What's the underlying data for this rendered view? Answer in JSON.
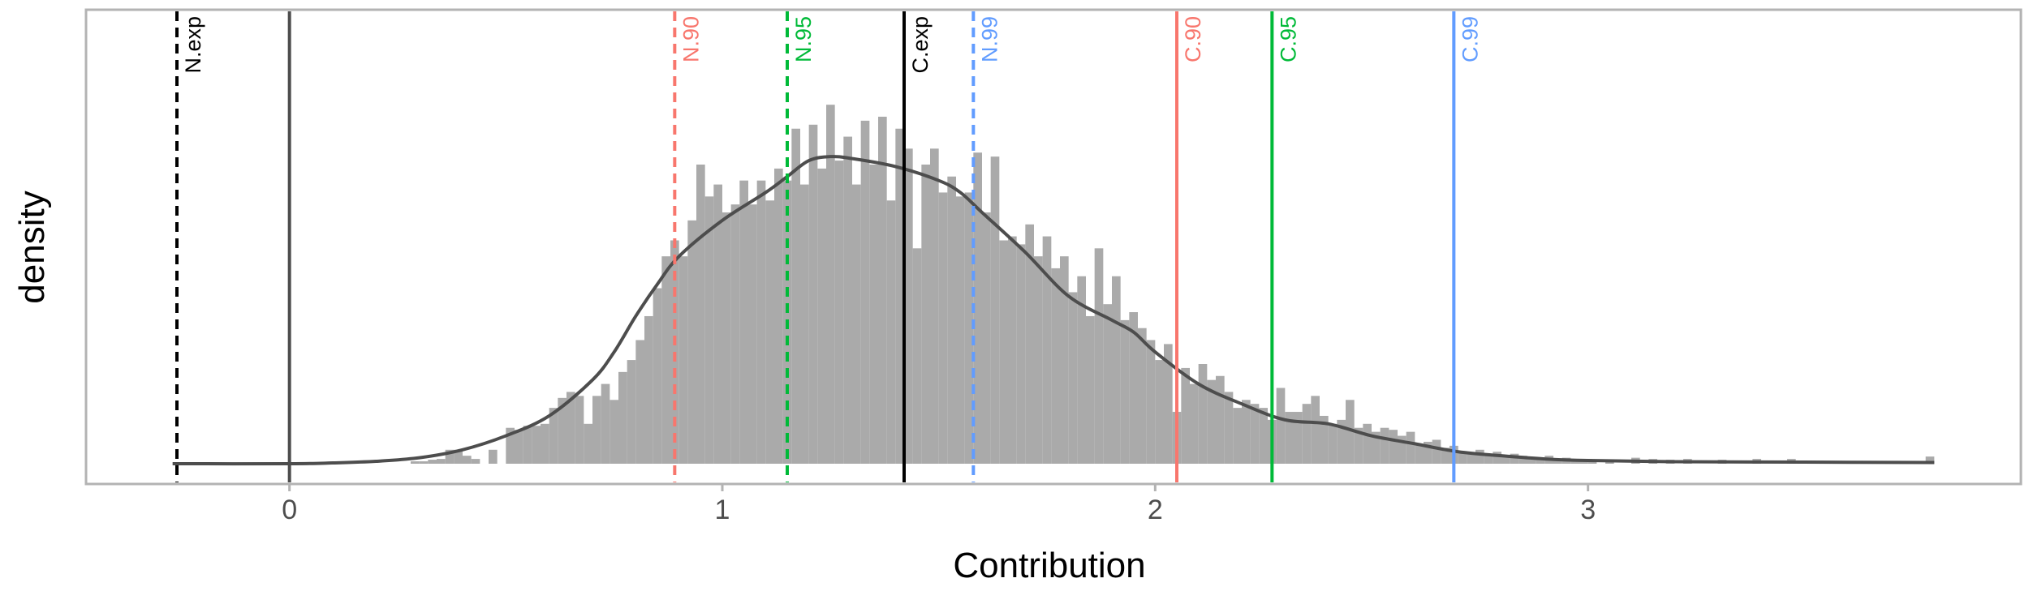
{
  "chart_data": {
    "type": "histogram",
    "xlabel": "Contribution",
    "ylabel": "density",
    "xlim": [
      -0.47,
      4.0
    ],
    "ylim": [
      0,
      1.0
    ],
    "x_ticks": [
      0,
      1,
      2,
      3
    ],
    "grid": false,
    "bar_color": "#aaaaaa",
    "density_color": "#4d4d4d",
    "histogram": {
      "bin_width": 0.02,
      "bins": [
        {
          "x": 0.29,
          "y": 0.006
        },
        {
          "x": 0.31,
          "y": 0.006
        },
        {
          "x": 0.33,
          "y": 0.01
        },
        {
          "x": 0.35,
          "y": 0.012
        },
        {
          "x": 0.37,
          "y": 0.035
        },
        {
          "x": 0.39,
          "y": 0.035
        },
        {
          "x": 0.41,
          "y": 0.02
        },
        {
          "x": 0.43,
          "y": 0.012
        },
        {
          "x": 0.47,
          "y": 0.035
        },
        {
          "x": 0.51,
          "y": 0.09
        },
        {
          "x": 0.53,
          "y": 0.085
        },
        {
          "x": 0.55,
          "y": 0.095
        },
        {
          "x": 0.57,
          "y": 0.095
        },
        {
          "x": 0.59,
          "y": 0.1
        },
        {
          "x": 0.61,
          "y": 0.14
        },
        {
          "x": 0.63,
          "y": 0.165
        },
        {
          "x": 0.65,
          "y": 0.18
        },
        {
          "x": 0.67,
          "y": 0.17
        },
        {
          "x": 0.69,
          "y": 0.1
        },
        {
          "x": 0.71,
          "y": 0.17
        },
        {
          "x": 0.73,
          "y": 0.2
        },
        {
          "x": 0.75,
          "y": 0.16
        },
        {
          "x": 0.77,
          "y": 0.23
        },
        {
          "x": 0.79,
          "y": 0.26
        },
        {
          "x": 0.81,
          "y": 0.31
        },
        {
          "x": 0.83,
          "y": 0.37
        },
        {
          "x": 0.85,
          "y": 0.44
        },
        {
          "x": 0.87,
          "y": 0.52
        },
        {
          "x": 0.89,
          "y": 0.56
        },
        {
          "x": 0.91,
          "y": 0.52
        },
        {
          "x": 0.93,
          "y": 0.61
        },
        {
          "x": 0.95,
          "y": 0.75
        },
        {
          "x": 0.97,
          "y": 0.67
        },
        {
          "x": 0.99,
          "y": 0.7
        },
        {
          "x": 1.01,
          "y": 0.63
        },
        {
          "x": 1.03,
          "y": 0.65
        },
        {
          "x": 1.05,
          "y": 0.71
        },
        {
          "x": 1.07,
          "y": 0.65
        },
        {
          "x": 1.09,
          "y": 0.71
        },
        {
          "x": 1.11,
          "y": 0.66
        },
        {
          "x": 1.13,
          "y": 0.74
        },
        {
          "x": 1.15,
          "y": 0.71
        },
        {
          "x": 1.17,
          "y": 0.84
        },
        {
          "x": 1.19,
          "y": 0.7
        },
        {
          "x": 1.21,
          "y": 0.85
        },
        {
          "x": 1.23,
          "y": 0.74
        },
        {
          "x": 1.25,
          "y": 0.9
        },
        {
          "x": 1.27,
          "y": 0.76
        },
        {
          "x": 1.29,
          "y": 0.82
        },
        {
          "x": 1.31,
          "y": 0.7
        },
        {
          "x": 1.33,
          "y": 0.86
        },
        {
          "x": 1.35,
          "y": 0.75
        },
        {
          "x": 1.37,
          "y": 0.87
        },
        {
          "x": 1.39,
          "y": 0.66
        },
        {
          "x": 1.41,
          "y": 0.84
        },
        {
          "x": 1.43,
          "y": 0.79
        },
        {
          "x": 1.45,
          "y": 0.54
        },
        {
          "x": 1.47,
          "y": 0.75
        },
        {
          "x": 1.49,
          "y": 0.79
        },
        {
          "x": 1.51,
          "y": 0.68
        },
        {
          "x": 1.53,
          "y": 0.72
        },
        {
          "x": 1.55,
          "y": 0.67
        },
        {
          "x": 1.57,
          "y": 0.68
        },
        {
          "x": 1.59,
          "y": 0.78
        },
        {
          "x": 1.61,
          "y": 0.63
        },
        {
          "x": 1.63,
          "y": 0.77
        },
        {
          "x": 1.65,
          "y": 0.56
        },
        {
          "x": 1.67,
          "y": 0.57
        },
        {
          "x": 1.69,
          "y": 0.55
        },
        {
          "x": 1.71,
          "y": 0.6
        },
        {
          "x": 1.73,
          "y": 0.52
        },
        {
          "x": 1.75,
          "y": 0.57
        },
        {
          "x": 1.77,
          "y": 0.49
        },
        {
          "x": 1.79,
          "y": 0.52
        },
        {
          "x": 1.81,
          "y": 0.43
        },
        {
          "x": 1.83,
          "y": 0.47
        },
        {
          "x": 1.85,
          "y": 0.37
        },
        {
          "x": 1.87,
          "y": 0.54
        },
        {
          "x": 1.89,
          "y": 0.4
        },
        {
          "x": 1.91,
          "y": 0.47
        },
        {
          "x": 1.93,
          "y": 0.36
        },
        {
          "x": 1.95,
          "y": 0.38
        },
        {
          "x": 1.97,
          "y": 0.34
        },
        {
          "x": 1.99,
          "y": 0.31
        },
        {
          "x": 2.01,
          "y": 0.26
        },
        {
          "x": 2.03,
          "y": 0.3
        },
        {
          "x": 2.05,
          "y": 0.13
        },
        {
          "x": 2.07,
          "y": 0.24
        },
        {
          "x": 2.09,
          "y": 0.2
        },
        {
          "x": 2.11,
          "y": 0.25
        },
        {
          "x": 2.13,
          "y": 0.21
        },
        {
          "x": 2.15,
          "y": 0.22
        },
        {
          "x": 2.17,
          "y": 0.18
        },
        {
          "x": 2.19,
          "y": 0.14
        },
        {
          "x": 2.21,
          "y": 0.16
        },
        {
          "x": 2.23,
          "y": 0.15
        },
        {
          "x": 2.25,
          "y": 0.14
        },
        {
          "x": 2.27,
          "y": 0.11
        },
        {
          "x": 2.29,
          "y": 0.19
        },
        {
          "x": 2.31,
          "y": 0.13
        },
        {
          "x": 2.33,
          "y": 0.13
        },
        {
          "x": 2.35,
          "y": 0.15
        },
        {
          "x": 2.37,
          "y": 0.17
        },
        {
          "x": 2.39,
          "y": 0.12
        },
        {
          "x": 2.41,
          "y": 0.1
        },
        {
          "x": 2.43,
          "y": 0.11
        },
        {
          "x": 2.45,
          "y": 0.16
        },
        {
          "x": 2.47,
          "y": 0.09
        },
        {
          "x": 2.49,
          "y": 0.1
        },
        {
          "x": 2.51,
          "y": 0.08
        },
        {
          "x": 2.53,
          "y": 0.09
        },
        {
          "x": 2.55,
          "y": 0.085
        },
        {
          "x": 2.57,
          "y": 0.07
        },
        {
          "x": 2.59,
          "y": 0.08
        },
        {
          "x": 2.61,
          "y": 0.05
        },
        {
          "x": 2.63,
          "y": 0.055
        },
        {
          "x": 2.65,
          "y": 0.06
        },
        {
          "x": 2.67,
          "y": 0.04
        },
        {
          "x": 2.69,
          "y": 0.045
        },
        {
          "x": 2.71,
          "y": 0.03
        },
        {
          "x": 2.73,
          "y": 0.025
        },
        {
          "x": 2.75,
          "y": 0.035
        },
        {
          "x": 2.77,
          "y": 0.02
        },
        {
          "x": 2.79,
          "y": 0.03
        },
        {
          "x": 2.81,
          "y": 0.02
        },
        {
          "x": 2.83,
          "y": 0.025
        },
        {
          "x": 2.85,
          "y": 0.02
        },
        {
          "x": 2.87,
          "y": 0.015
        },
        {
          "x": 2.89,
          "y": 0.015
        },
        {
          "x": 2.91,
          "y": 0.02
        },
        {
          "x": 2.93,
          "y": 0.01
        },
        {
          "x": 2.95,
          "y": 0.015
        },
        {
          "x": 2.97,
          "y": 0.01
        },
        {
          "x": 2.99,
          "y": 0.012
        },
        {
          "x": 3.01,
          "y": 0.008
        },
        {
          "x": 3.05,
          "y": 0.01
        },
        {
          "x": 3.11,
          "y": 0.015
        },
        {
          "x": 3.15,
          "y": 0.012
        },
        {
          "x": 3.19,
          "y": 0.01
        },
        {
          "x": 3.23,
          "y": 0.012
        },
        {
          "x": 3.31,
          "y": 0.01
        },
        {
          "x": 3.39,
          "y": 0.012
        },
        {
          "x": 3.47,
          "y": 0.012
        },
        {
          "x": 3.79,
          "y": 0.018
        }
      ]
    },
    "density_curve": [
      {
        "x": -0.27,
        "y": 0.0
      },
      {
        "x": 0.0,
        "y": 0.0
      },
      {
        "x": 0.1,
        "y": 0.002
      },
      {
        "x": 0.2,
        "y": 0.006
      },
      {
        "x": 0.3,
        "y": 0.015
      },
      {
        "x": 0.4,
        "y": 0.035
      },
      {
        "x": 0.5,
        "y": 0.07
      },
      {
        "x": 0.6,
        "y": 0.12
      },
      {
        "x": 0.7,
        "y": 0.21
      },
      {
        "x": 0.75,
        "y": 0.28
      },
      {
        "x": 0.8,
        "y": 0.37
      },
      {
        "x": 0.85,
        "y": 0.45
      },
      {
        "x": 0.9,
        "y": 0.52
      },
      {
        "x": 1.0,
        "y": 0.61
      },
      {
        "x": 1.1,
        "y": 0.68
      },
      {
        "x": 1.15,
        "y": 0.72
      },
      {
        "x": 1.2,
        "y": 0.76
      },
      {
        "x": 1.25,
        "y": 0.77
      },
      {
        "x": 1.3,
        "y": 0.765
      },
      {
        "x": 1.4,
        "y": 0.745
      },
      {
        "x": 1.5,
        "y": 0.71
      },
      {
        "x": 1.55,
        "y": 0.68
      },
      {
        "x": 1.6,
        "y": 0.63
      },
      {
        "x": 1.7,
        "y": 0.53
      },
      {
        "x": 1.8,
        "y": 0.42
      },
      {
        "x": 1.9,
        "y": 0.36
      },
      {
        "x": 1.95,
        "y": 0.33
      },
      {
        "x": 2.0,
        "y": 0.28
      },
      {
        "x": 2.1,
        "y": 0.2
      },
      {
        "x": 2.2,
        "y": 0.15
      },
      {
        "x": 2.3,
        "y": 0.11
      },
      {
        "x": 2.4,
        "y": 0.1
      },
      {
        "x": 2.5,
        "y": 0.07
      },
      {
        "x": 2.6,
        "y": 0.05
      },
      {
        "x": 2.7,
        "y": 0.03
      },
      {
        "x": 2.8,
        "y": 0.02
      },
      {
        "x": 2.9,
        "y": 0.012
      },
      {
        "x": 3.0,
        "y": 0.008
      },
      {
        "x": 3.2,
        "y": 0.005
      },
      {
        "x": 3.5,
        "y": 0.004
      },
      {
        "x": 3.8,
        "y": 0.003
      }
    ],
    "reference_lines": [
      {
        "label": "",
        "x": 0.0,
        "style": "solid",
        "color": "#4d4d4d"
      },
      {
        "label": "N.exp",
        "x": -0.26,
        "style": "dashed",
        "color": "#000000"
      },
      {
        "label": "N.90",
        "x": 0.89,
        "style": "dashed",
        "color": "#f8766d"
      },
      {
        "label": "N.95",
        "x": 1.15,
        "style": "dashed",
        "color": "#00ba38"
      },
      {
        "label": "C.exp",
        "x": 1.42,
        "style": "solid",
        "color": "#000000"
      },
      {
        "label": "N.99",
        "x": 1.58,
        "style": "dashed",
        "color": "#619cff"
      },
      {
        "label": "C.90",
        "x": 2.05,
        "style": "solid",
        "color": "#f8766d"
      },
      {
        "label": "C.95",
        "x": 2.27,
        "style": "solid",
        "color": "#00ba38"
      },
      {
        "label": "C.99",
        "x": 2.69,
        "style": "solid",
        "color": "#619cff"
      }
    ]
  }
}
